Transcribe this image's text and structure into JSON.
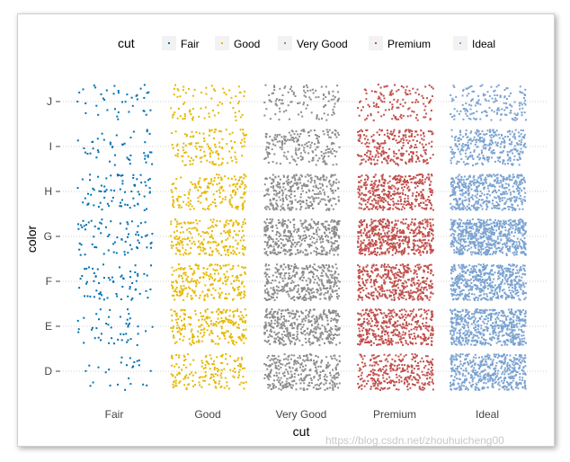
{
  "chart_data": {
    "type": "scatter",
    "title": "",
    "xlabel": "cut",
    "ylabel": "color",
    "categories_x": [
      "Fair",
      "Good",
      "Very Good",
      "Premium",
      "Ideal"
    ],
    "categories_y": [
      "D",
      "E",
      "F",
      "G",
      "H",
      "I",
      "J"
    ],
    "jitter": true,
    "grid": "horizontal-dotted",
    "legend": {
      "title": "cut",
      "position": "top",
      "entries": [
        "Fair",
        "Good",
        "Very Good",
        "Premium",
        "Ideal"
      ]
    },
    "colors": {
      "Fair": "#0072B2",
      "Good": "#E6B800",
      "Very Good": "#8C8C8C",
      "Premium": "#C0504D",
      "Ideal": "#7BA3D1"
    },
    "series": [
      {
        "name": "Fair",
        "counts": {
          "D": 25,
          "E": 45,
          "F": 65,
          "G": 70,
          "H": 75,
          "I": 45,
          "J": 40
        }
      },
      {
        "name": "Good",
        "counts": {
          "D": 160,
          "E": 230,
          "F": 225,
          "G": 220,
          "H": 170,
          "I": 130,
          "J": 75
        }
      },
      {
        "name": "Very Good",
        "counts": {
          "D": 320,
          "E": 380,
          "F": 360,
          "G": 380,
          "H": 300,
          "I": 200,
          "J": 110
        }
      },
      {
        "name": "Premium",
        "counts": {
          "D": 300,
          "E": 400,
          "F": 400,
          "G": 500,
          "H": 390,
          "I": 260,
          "J": 130
        }
      },
      {
        "name": "Ideal",
        "counts": {
          "D": 470,
          "E": 550,
          "F": 540,
          "G": 620,
          "H": 450,
          "I": 310,
          "J": 160
        }
      }
    ]
  },
  "watermark": "https://blog.csdn.net/zhouhuicheng00"
}
